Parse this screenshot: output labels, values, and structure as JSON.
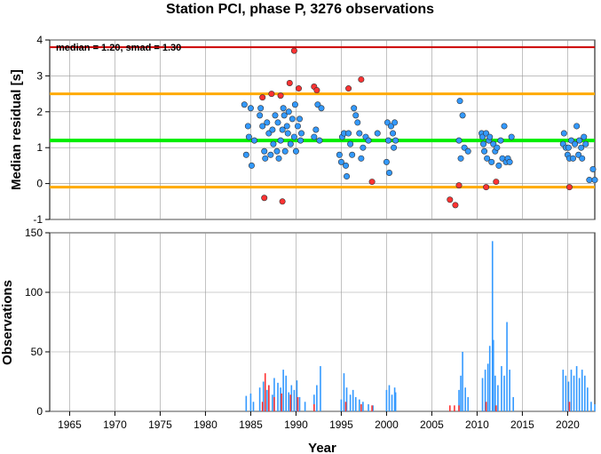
{
  "title": "Station PCI, phase P, 3276 observations",
  "annotation": "median = 1.20, smad = 1.30",
  "x_axis": {
    "label": "Year",
    "ticks": [
      1965,
      1970,
      1975,
      1980,
      1985,
      1990,
      1995,
      2000,
      2005,
      2010,
      2015,
      2020
    ],
    "range": [
      1962.8,
      2023.0
    ]
  },
  "colors": {
    "ok": "#3399ff",
    "outlier": "#ff3333",
    "median_line": "#00ee00",
    "smad_band": "#ffaa00",
    "limit": "#cc0000",
    "grid": "#999999"
  },
  "chart_data": [
    {
      "type": "scatter",
      "ylabel": "Median residual [s]",
      "ylim": [
        -1,
        4
      ],
      "yticks": [
        -1,
        0,
        1,
        2,
        3,
        4
      ],
      "hlines": {
        "limit": 3.8,
        "median": 1.2,
        "upper": 2.5,
        "lower": -0.1
      },
      "series": [
        {
          "points": [
            [
              1984.3,
              2.2
            ],
            [
              1984.5,
              0.8
            ],
            [
              1984.7,
              1.6
            ],
            [
              1984.8,
              1.3
            ],
            [
              1985,
              2.1
            ],
            [
              1985.1,
              0.5
            ],
            [
              1985.4,
              1.2
            ],
            [
              1986,
              1.9
            ],
            [
              1986.1,
              2.1
            ],
            [
              1986.3,
              1.6
            ],
            [
              1986.5,
              0.9
            ],
            [
              1986.6,
              0.7
            ],
            [
              1986.8,
              1.7
            ],
            [
              1987,
              1.4
            ],
            [
              1987.2,
              0.8
            ],
            [
              1987.4,
              1.5
            ],
            [
              1987.5,
              1.1
            ],
            [
              1987.7,
              1.9
            ],
            [
              1987.9,
              0.9
            ],
            [
              1988,
              1.7
            ],
            [
              1988.1,
              0.7
            ],
            [
              1988.3,
              1.2
            ],
            [
              1988.5,
              1.5
            ],
            [
              1988.6,
              2.1
            ],
            [
              1988.7,
              1.9
            ],
            [
              1988.8,
              0.9
            ],
            [
              1989,
              1.6
            ],
            [
              1989.1,
              1.4
            ],
            [
              1989.2,
              2.0
            ],
            [
              1989.4,
              1.1
            ],
            [
              1989.6,
              1.8
            ],
            [
              1989.8,
              1.3
            ],
            [
              1989.9,
              2.2
            ],
            [
              1990,
              0.9
            ],
            [
              1990.2,
              1.6
            ],
            [
              1990.4,
              1.8
            ],
            [
              1990.5,
              1.2
            ],
            [
              1990.6,
              1.4
            ],
            [
              1992,
              1.3
            ],
            [
              1992.2,
              1.5
            ],
            [
              1992.4,
              2.2
            ],
            [
              1992.6,
              1.2
            ],
            [
              1992.8,
              2.1
            ],
            [
              1994.8,
              0.8
            ],
            [
              1995,
              0.6
            ],
            [
              1995.1,
              1.3
            ],
            [
              1995.3,
              1.4
            ],
            [
              1995.5,
              0.5
            ],
            [
              1995.6,
              0.2
            ],
            [
              1995.8,
              1.4
            ],
            [
              1996,
              1.1
            ],
            [
              1996.2,
              0.8
            ],
            [
              1996.4,
              2.1
            ],
            [
              1996.6,
              1.9
            ],
            [
              1996.8,
              1.7
            ],
            [
              1997,
              1.4
            ],
            [
              1997.2,
              0.7
            ],
            [
              1997.4,
              1.0
            ],
            [
              1997.7,
              1.3
            ],
            [
              1998,
              1.2
            ],
            [
              1999,
              1.4
            ],
            [
              2000,
              0.6
            ],
            [
              2000.1,
              1.7
            ],
            [
              2000.2,
              1.2
            ],
            [
              2000.3,
              0.3
            ],
            [
              2000.5,
              1.6
            ],
            [
              2000.7,
              1.4
            ],
            [
              2000.8,
              1.0
            ],
            [
              2000.9,
              1.7
            ],
            [
              2001,
              1.2
            ],
            [
              2008,
              1.2
            ],
            [
              2008.1,
              2.3
            ],
            [
              2008.2,
              0.7
            ],
            [
              2008.4,
              1.9
            ],
            [
              2008.6,
              1.0
            ],
            [
              2009,
              0.9
            ],
            [
              2010.5,
              1.4
            ],
            [
              2010.6,
              1.3
            ],
            [
              2010.7,
              1.1
            ],
            [
              2010.8,
              0.9
            ],
            [
              2011,
              1.4
            ],
            [
              2011.1,
              0.7
            ],
            [
              2011.3,
              1.2
            ],
            [
              2011.4,
              1.3
            ],
            [
              2011.6,
              0.6
            ],
            [
              2011.8,
              1.1
            ],
            [
              2012,
              0.9
            ],
            [
              2012.2,
              1.0
            ],
            [
              2012.4,
              0.5
            ],
            [
              2012.6,
              1.2
            ],
            [
              2012.8,
              0.7
            ],
            [
              2013,
              1.6
            ],
            [
              2013.2,
              0.6
            ],
            [
              2013.4,
              0.7
            ],
            [
              2013.6,
              0.6
            ],
            [
              2013.8,
              1.3
            ],
            [
              2019.5,
              1.1
            ],
            [
              2019.6,
              1.4
            ],
            [
              2019.8,
              1.0
            ],
            [
              2020,
              0.8
            ],
            [
              2020.1,
              1.0
            ],
            [
              2020.2,
              0.7
            ],
            [
              2020.4,
              1.2
            ],
            [
              2020.6,
              0.7
            ],
            [
              2020.8,
              1.1
            ],
            [
              2021,
              1.6
            ],
            [
              2021.2,
              0.8
            ],
            [
              2021.3,
              1.2
            ],
            [
              2021.5,
              1.0
            ],
            [
              2021.6,
              0.7
            ],
            [
              2021.8,
              1.3
            ],
            [
              2022,
              1.1
            ],
            [
              2022.4,
              0.1
            ],
            [
              2022.8,
              0.4
            ],
            [
              2023,
              0.1
            ]
          ]
        },
        {
          "points": [
            [
              1986.3,
              2.4
            ],
            [
              1986.5,
              -0.4
            ],
            [
              1987.3,
              2.5
            ],
            [
              1988.3,
              2.45
            ],
            [
              1988.5,
              -0.5
            ],
            [
              1989.3,
              2.8
            ],
            [
              1989.8,
              3.7
            ],
            [
              1990.3,
              2.65
            ],
            [
              1992,
              2.7
            ],
            [
              1992.3,
              2.6
            ],
            [
              1995.8,
              2.65
            ],
            [
              1997.2,
              2.9
            ],
            [
              1998.4,
              0.05
            ],
            [
              2007,
              -0.45
            ],
            [
              2007.6,
              -0.6
            ],
            [
              2008,
              -0.05
            ],
            [
              2011,
              -0.1
            ],
            [
              2012.1,
              0.05
            ],
            [
              2020.2,
              -0.1
            ]
          ]
        }
      ]
    },
    {
      "type": "bar",
      "ylabel": "Observations",
      "ylim": [
        0,
        150
      ],
      "yticks": [
        0,
        50,
        100,
        150
      ],
      "series": [
        {
          "bars": [
            [
              1984.5,
              13
            ],
            [
              1985,
              15
            ],
            [
              1985.3,
              8
            ],
            [
              1986,
              20
            ],
            [
              1986.4,
              25
            ],
            [
              1986.8,
              18
            ],
            [
              1987,
              22
            ],
            [
              1987.4,
              14
            ],
            [
              1987.6,
              28
            ],
            [
              1988,
              24
            ],
            [
              1988.3,
              20
            ],
            [
              1988.6,
              35
            ],
            [
              1988.9,
              30
            ],
            [
              1989.2,
              16
            ],
            [
              1989.5,
              22
            ],
            [
              1989.8,
              18
            ],
            [
              1990.1,
              26
            ],
            [
              1990.4,
              12
            ],
            [
              1991,
              8
            ],
            [
              1992,
              14
            ],
            [
              1992.3,
              22
            ],
            [
              1992.7,
              38
            ],
            [
              1995,
              10
            ],
            [
              1995.3,
              32
            ],
            [
              1995.6,
              20
            ],
            [
              1996,
              14
            ],
            [
              1996.3,
              18
            ],
            [
              1996.6,
              12
            ],
            [
              1997,
              10
            ],
            [
              1997.4,
              8
            ],
            [
              1998,
              6
            ],
            [
              1998.5,
              5
            ],
            [
              2000,
              18
            ],
            [
              2000.3,
              22
            ],
            [
              2000.6,
              14
            ],
            [
              2000.9,
              20
            ],
            [
              2001,
              16
            ],
            [
              2008,
              18
            ],
            [
              2008.2,
              30
            ],
            [
              2008.4,
              50
            ],
            [
              2008.7,
              20
            ],
            [
              2009,
              12
            ],
            [
              2010.6,
              28
            ],
            [
              2010.9,
              35
            ],
            [
              2011.2,
              40
            ],
            [
              2011.4,
              55
            ],
            [
              2011.7,
              143
            ],
            [
              2011.8,
              60
            ],
            [
              2012,
              30
            ],
            [
              2012.3,
              22
            ],
            [
              2012.7,
              38
            ],
            [
              2013,
              30
            ],
            [
              2013.3,
              75
            ],
            [
              2013.6,
              35
            ],
            [
              2014,
              12
            ],
            [
              2019.5,
              35
            ],
            [
              2019.8,
              30
            ],
            [
              2020.1,
              25
            ],
            [
              2020.4,
              35
            ],
            [
              2020.7,
              30
            ],
            [
              2021,
              38
            ],
            [
              2021.3,
              28
            ],
            [
              2021.6,
              35
            ],
            [
              2021.9,
              30
            ],
            [
              2022.2,
              20
            ],
            [
              2022.6,
              8
            ],
            [
              2023,
              6
            ]
          ]
        },
        {
          "bars": [
            [
              1986.3,
              8
            ],
            [
              1986.6,
              32
            ],
            [
              1987,
              22
            ],
            [
              1987.6,
              12
            ],
            [
              1988.4,
              15
            ],
            [
              1989.4,
              14
            ],
            [
              1990.2,
              12
            ],
            [
              1992,
              6
            ],
            [
              1995.5,
              8
            ],
            [
              1997.2,
              6
            ],
            [
              1998.4,
              5
            ],
            [
              2007,
              5
            ],
            [
              2007.5,
              5
            ],
            [
              2008,
              5
            ],
            [
              2011,
              8
            ],
            [
              2012.1,
              5
            ],
            [
              2020.2,
              8
            ]
          ]
        }
      ]
    }
  ]
}
